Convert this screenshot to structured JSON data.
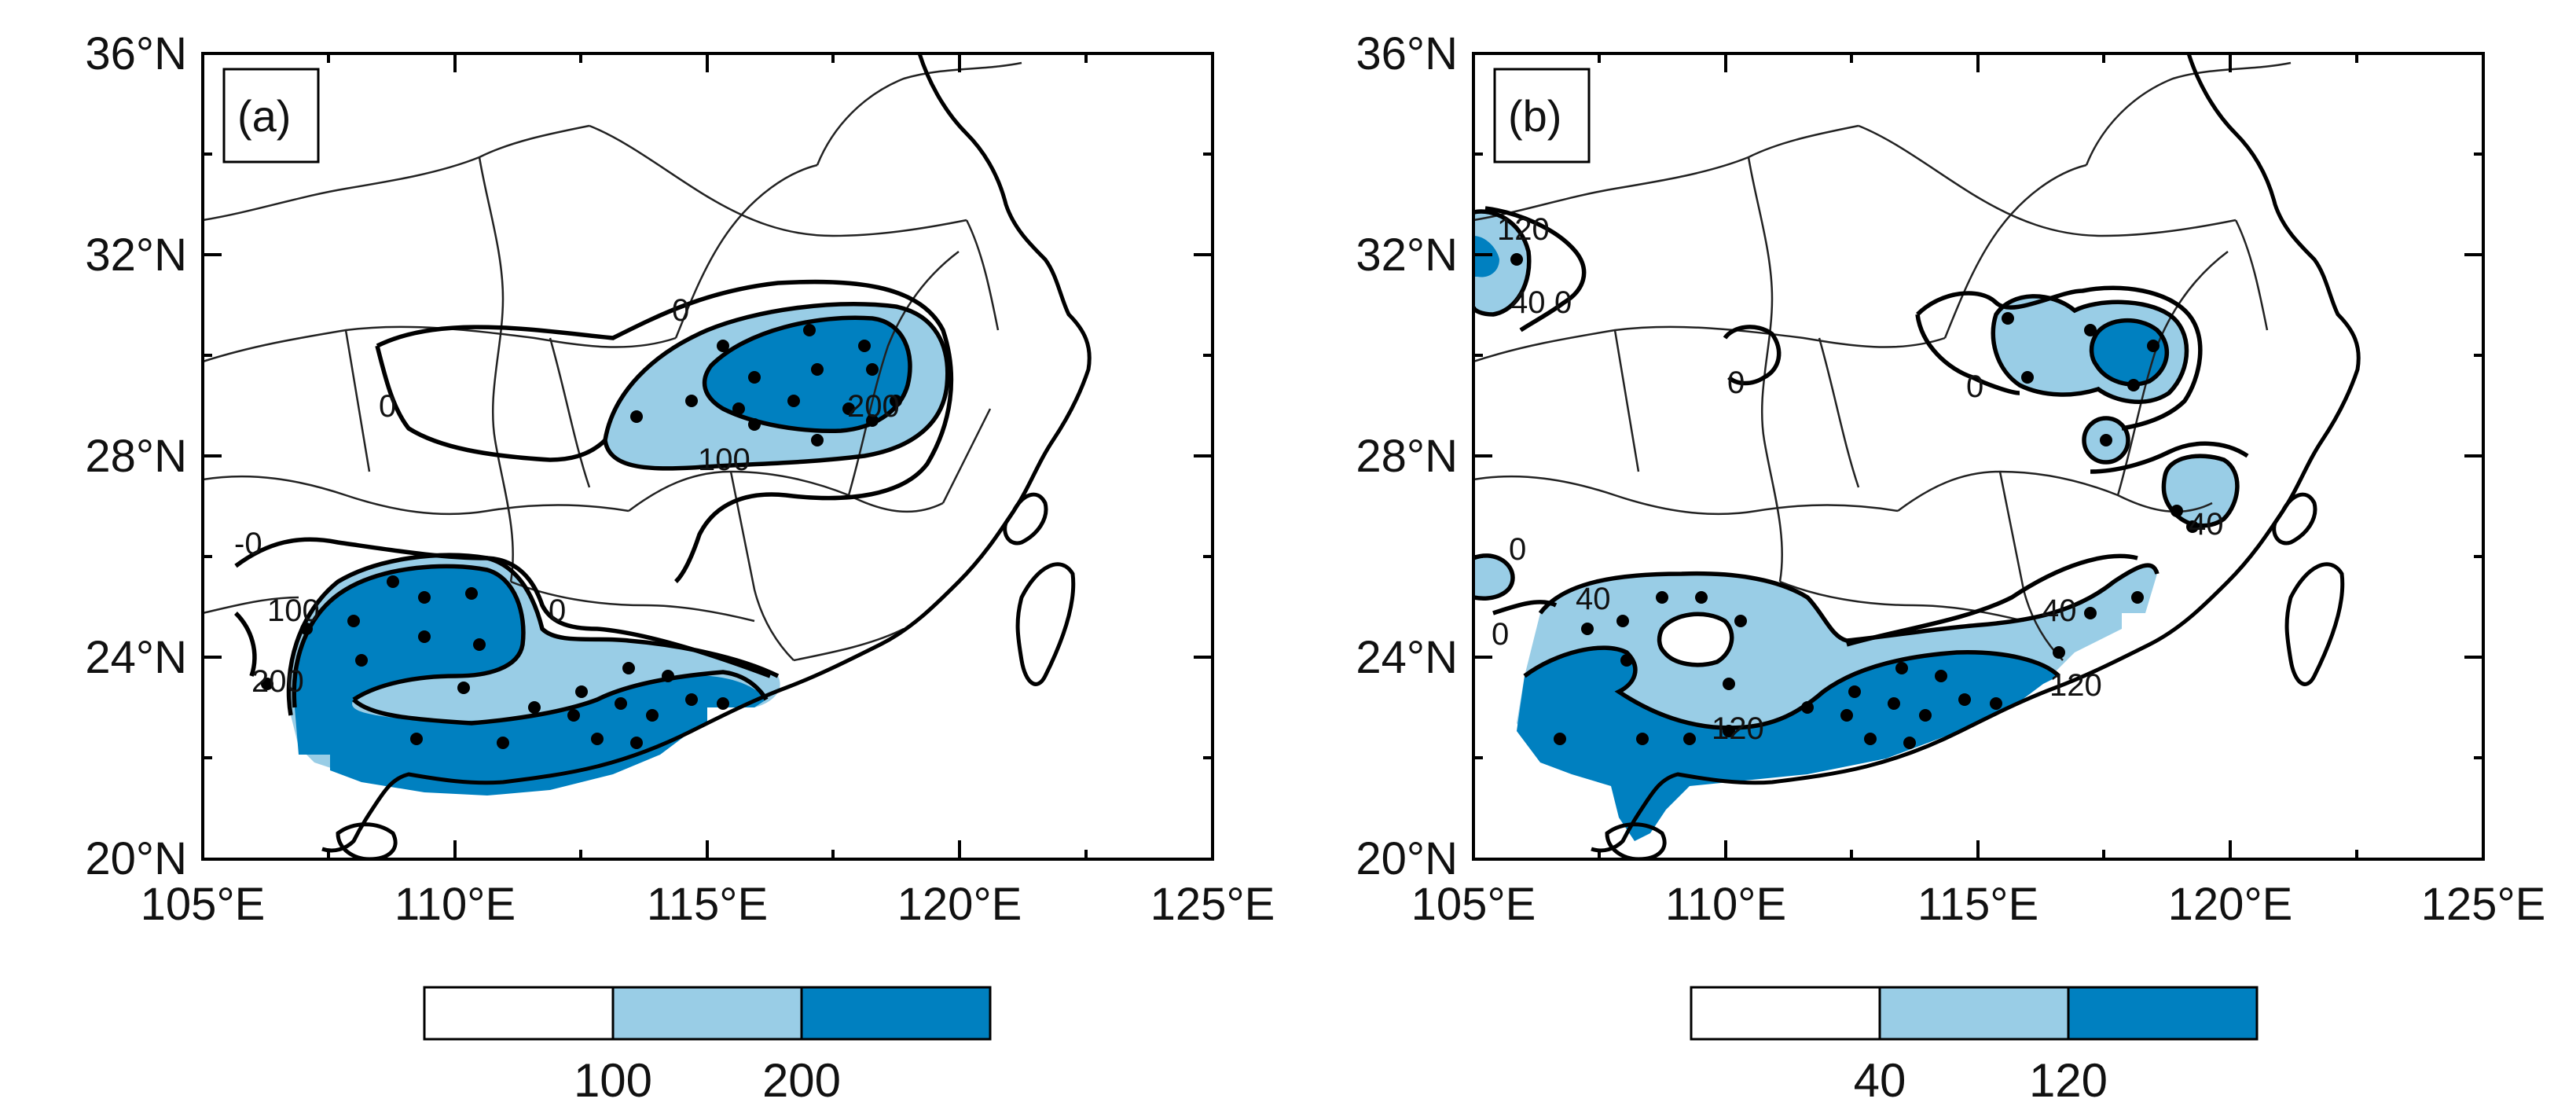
{
  "figure": {
    "panels": [
      {
        "id": "a",
        "label": "(a)",
        "lat_labels": [
          "36°N",
          "32°N",
          "28°N",
          "24°N",
          "20°N"
        ],
        "lon_labels": [
          "105°E",
          "110°E",
          "115°E",
          "120°E",
          "125°E"
        ],
        "contour_labels": [
          "0",
          "0",
          "-0",
          "100",
          "200",
          "100",
          "200",
          "0"
        ],
        "colorbar": {
          "colors": [
            "#ffffff",
            "#99cde6",
            "#0080c0"
          ],
          "tick_labels": [
            "100",
            "200"
          ]
        }
      },
      {
        "id": "b",
        "label": "(b)",
        "lat_labels": [
          "36°N",
          "32°N",
          "28°N",
          "24°N",
          "20°N"
        ],
        "lon_labels": [
          "105°E",
          "110°E",
          "115°E",
          "120°E",
          "125°E"
        ],
        "contour_labels": [
          "120",
          "40",
          "0",
          "0",
          "0",
          "0",
          "40",
          "0",
          "40",
          "120",
          "120",
          "40"
        ],
        "colorbar": {
          "colors": [
            "#ffffff",
            "#99cde6",
            "#0080c0"
          ],
          "tick_labels": [
            "40",
            "120"
          ]
        }
      }
    ]
  },
  "colors": {
    "low": "#ffffff",
    "mid": "#99cde6",
    "high": "#0080c0"
  }
}
